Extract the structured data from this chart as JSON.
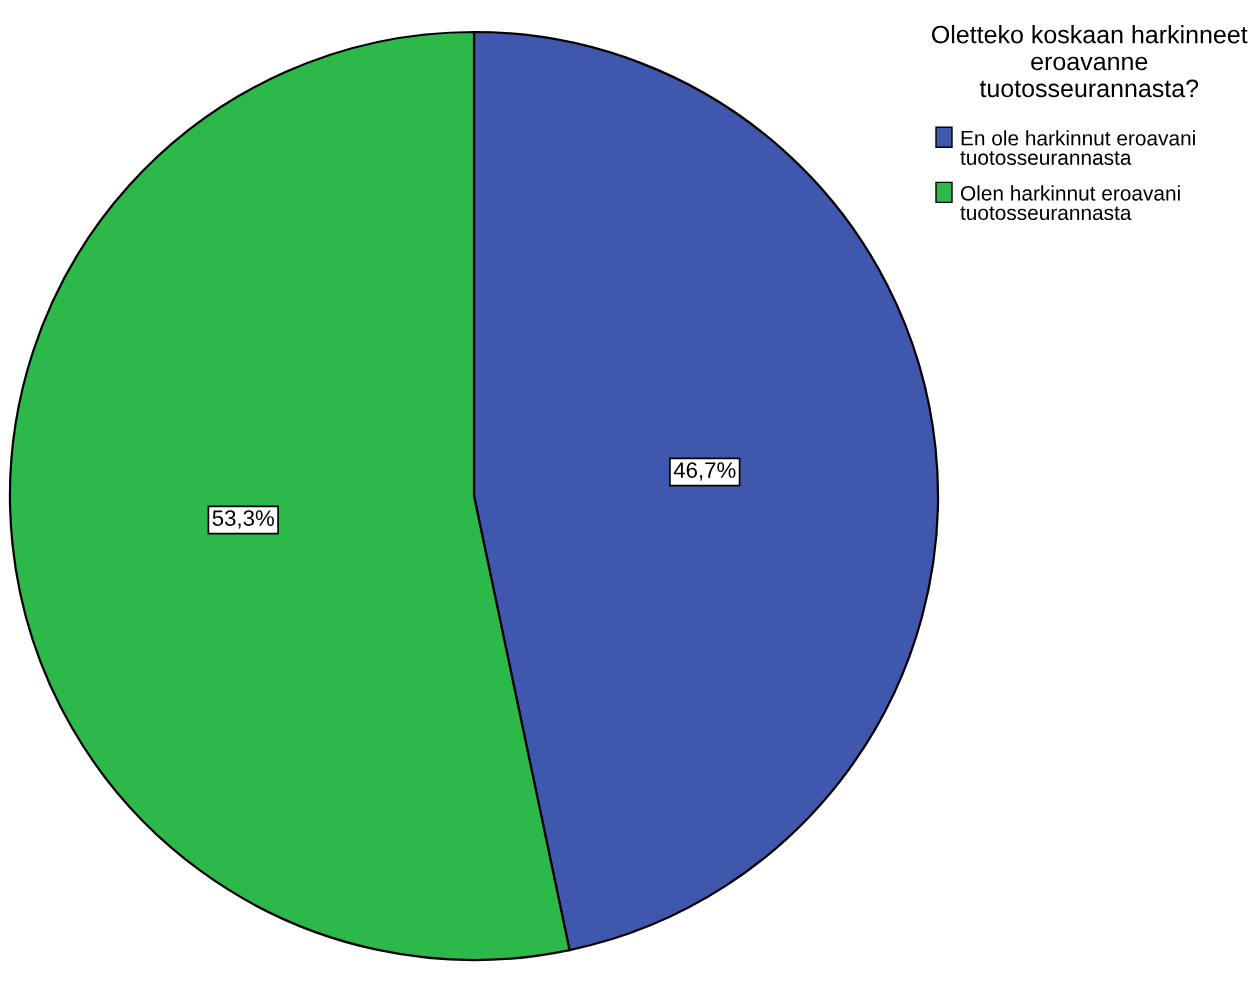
{
  "chart_data": {
    "type": "pie",
    "legend_title": "Oletteko koskaan harkinneet eroavanne tuotosseurannasta?",
    "categories": [
      "En ole harkinnut eroavani tuotosseurannasta",
      "Olen harkinnut eroavani tuotosseurannasta"
    ],
    "values": [
      46.7,
      53.3
    ],
    "colors": [
      "#3f58ad",
      "#2db84a"
    ],
    "value_labels": [
      "46,7%",
      "53,3%"
    ],
    "legend": "top right"
  }
}
